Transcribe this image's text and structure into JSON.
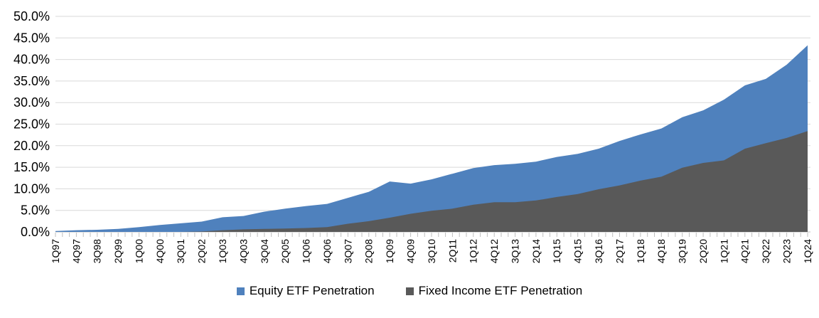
{
  "chart_data": {
    "type": "area",
    "mode": "overlay",
    "title": "",
    "categories": [
      "1Q97",
      "4Q97",
      "3Q98",
      "2Q99",
      "1Q00",
      "4Q00",
      "3Q01",
      "2Q02",
      "1Q03",
      "4Q03",
      "3Q04",
      "2Q05",
      "1Q06",
      "4Q06",
      "3Q07",
      "2Q08",
      "1Q09",
      "4Q09",
      "3Q10",
      "2Q11",
      "1Q12",
      "4Q12",
      "3Q13",
      "2Q14",
      "1Q15",
      "4Q15",
      "3Q16",
      "2Q17",
      "1Q18",
      "4Q18",
      "3Q19",
      "2Q20",
      "1Q21",
      "4Q21",
      "3Q22",
      "2Q23",
      "1Q24"
    ],
    "x_note": "labels every 3 quarters, quarterly tick marks on axis",
    "series": [
      {
        "name": "Equity ETF Penetration",
        "color": "#4F81BD",
        "values": [
          0.2,
          0.4,
          0.5,
          0.7,
          1.1,
          1.6,
          2.0,
          2.4,
          3.4,
          3.7,
          4.7,
          5.4,
          6.0,
          6.5,
          7.9,
          9.3,
          11.7,
          11.2,
          12.2,
          13.5,
          14.8,
          15.5,
          15.8,
          16.3,
          17.4,
          18.1,
          19.3,
          21.1,
          22.6,
          24.0,
          26.6,
          28.2,
          30.7,
          34.0,
          35.5,
          38.8,
          43.3
        ]
      },
      {
        "name": "Fixed Income ETF Penetration",
        "color": "#595959",
        "values": [
          0.0,
          0.0,
          0.0,
          0.0,
          0.0,
          0.0,
          0.0,
          0.1,
          0.4,
          0.6,
          0.7,
          0.8,
          0.9,
          1.1,
          1.9,
          2.5,
          3.3,
          4.2,
          4.9,
          5.4,
          6.3,
          6.9,
          6.9,
          7.3,
          8.1,
          8.8,
          9.9,
          10.8,
          11.9,
          12.8,
          14.9,
          16.0,
          16.6,
          19.3,
          20.6,
          21.8,
          23.4
        ]
      }
    ],
    "ylim": [
      0,
      50
    ],
    "y_tick_step": 5,
    "y_tick_labels": [
      "0.0%",
      "5.0%",
      "10.0%",
      "15.0%",
      "20.0%",
      "25.0%",
      "30.0%",
      "35.0%",
      "40.0%",
      "45.0%",
      "50.0%"
    ],
    "grid": true,
    "legend_position": "bottom"
  },
  "style": {
    "gridline_color": "#D9D9D9",
    "axis_color": "#BFBFBF",
    "text_color": "#000000",
    "background": "#FFFFFF"
  }
}
